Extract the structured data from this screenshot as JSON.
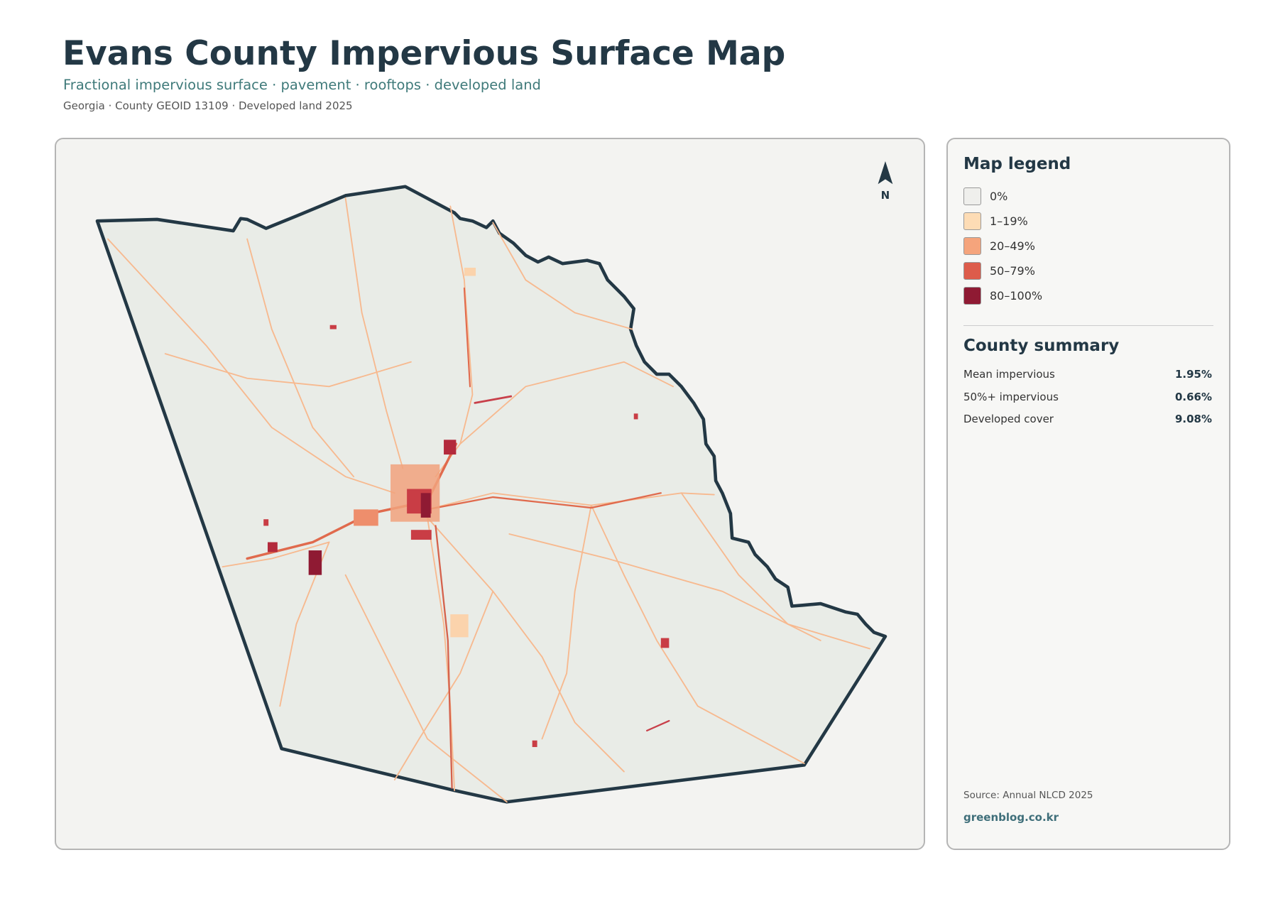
{
  "header": {
    "title": "Evans County Impervious Surface Map",
    "subtitle": "Fractional impervious surface · pavement · rooftops · developed land",
    "meta": "Georgia · County GEOID 13109 · Developed land 2025"
  },
  "map": {
    "north_label": "N"
  },
  "legend": {
    "title": "Map legend",
    "items": [
      {
        "label": "0%",
        "color": "#efefec"
      },
      {
        "label": "1–19%",
        "color": "#fddcb5"
      },
      {
        "label": "20–49%",
        "color": "#f5a47c"
      },
      {
        "label": "50–79%",
        "color": "#dd5c4b"
      },
      {
        "label": "80–100%",
        "color": "#8f1a33"
      }
    ]
  },
  "summary": {
    "title": "County summary",
    "rows": [
      {
        "label": "Mean impervious",
        "value": "1.95%"
      },
      {
        "label": "50%+ impervious",
        "value": "0.66%"
      },
      {
        "label": "Developed cover",
        "value": "9.08%"
      }
    ]
  },
  "footer": {
    "source": "Source: Annual NLCD 2025",
    "site": "greenblog.co.kr"
  }
}
